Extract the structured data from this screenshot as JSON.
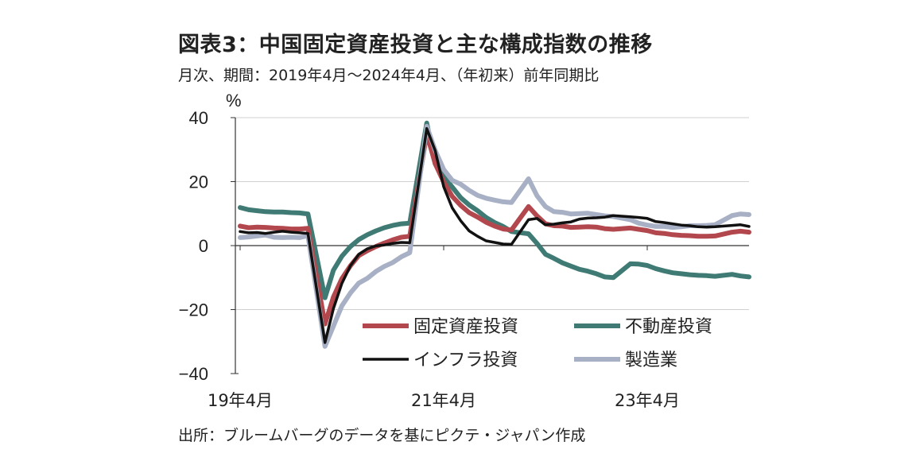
{
  "title": "図表3：中国固定資産投資と主な構成指数の推移",
  "subtitle": "月次、期間：2019年4月～2024年4月、（年初来）前年同期比",
  "source": "出所：ブルームバーグのデータを基にピクテ・ジャパン作成",
  "chart_data": {
    "type": "line",
    "ylabel": "%",
    "ylim": [
      -40,
      40
    ],
    "yticks": [
      "40",
      "20",
      "0",
      "−20",
      "−40"
    ],
    "x_range": [
      "2019-04",
      "2024-04"
    ],
    "xtick_labels": [
      {
        "date": "2019-04",
        "label": "19年4月"
      },
      {
        "date": "2021-04",
        "label": "21年4月"
      },
      {
        "date": "2023-04",
        "label": "23年4月"
      }
    ],
    "grid": true,
    "legend_position": "bottom-right",
    "series": [
      {
        "name": "固定資産投資",
        "color": "#b2484d",
        "width": 6,
        "x": [
          "2019-04",
          "2019-05",
          "2019-06",
          "2019-07",
          "2019-08",
          "2019-09",
          "2019-10",
          "2019-11",
          "2019-12",
          "2020-02",
          "2020-03",
          "2020-04",
          "2020-05",
          "2020-06",
          "2020-07",
          "2020-08",
          "2020-09",
          "2020-10",
          "2020-11",
          "2020-12",
          "2021-02",
          "2021-03",
          "2021-04",
          "2021-05",
          "2021-06",
          "2021-07",
          "2021-08",
          "2021-09",
          "2021-10",
          "2021-11",
          "2021-12",
          "2022-02",
          "2022-03",
          "2022-04",
          "2022-05",
          "2022-06",
          "2022-07",
          "2022-08",
          "2022-09",
          "2022-10",
          "2022-11",
          "2022-12",
          "2023-02",
          "2023-03",
          "2023-04",
          "2023-05",
          "2023-06",
          "2023-07",
          "2023-08",
          "2023-09",
          "2023-10",
          "2023-11",
          "2023-12",
          "2024-02",
          "2024-03",
          "2024-04"
        ],
        "values": [
          6.1,
          5.6,
          5.8,
          5.7,
          5.5,
          5.4,
          5.2,
          5.2,
          5.4,
          -24.5,
          -16.1,
          -10.3,
          -6.3,
          -3.1,
          -1.6,
          -0.3,
          0.8,
          1.8,
          2.6,
          2.9,
          35.0,
          25.6,
          19.9,
          15.4,
          12.6,
          10.3,
          8.9,
          7.3,
          6.1,
          5.2,
          4.9,
          12.2,
          9.3,
          6.8,
          6.2,
          6.1,
          5.7,
          5.8,
          5.9,
          5.8,
          5.3,
          5.1,
          5.5,
          5.1,
          4.7,
          4.0,
          3.8,
          3.4,
          3.2,
          3.1,
          2.9,
          2.9,
          3.0,
          4.2,
          4.5,
          4.2
        ]
      },
      {
        "name": "不動産投資",
        "color": "#3f7b74",
        "width": 6,
        "x": [
          "2019-04",
          "2019-05",
          "2019-06",
          "2019-07",
          "2019-08",
          "2019-09",
          "2019-10",
          "2019-11",
          "2019-12",
          "2020-02",
          "2020-03",
          "2020-04",
          "2020-05",
          "2020-06",
          "2020-07",
          "2020-08",
          "2020-09",
          "2020-10",
          "2020-11",
          "2020-12",
          "2021-02",
          "2021-03",
          "2021-04",
          "2021-05",
          "2021-06",
          "2021-07",
          "2021-08",
          "2021-09",
          "2021-10",
          "2021-11",
          "2021-12",
          "2022-02",
          "2022-03",
          "2022-04",
          "2022-05",
          "2022-06",
          "2022-07",
          "2022-08",
          "2022-09",
          "2022-10",
          "2022-11",
          "2022-12",
          "2023-02",
          "2023-03",
          "2023-04",
          "2023-05",
          "2023-06",
          "2023-07",
          "2023-08",
          "2023-09",
          "2023-10",
          "2023-11",
          "2023-12",
          "2024-02",
          "2024-03",
          "2024-04"
        ],
        "values": [
          11.9,
          11.2,
          10.9,
          10.6,
          10.5,
          10.5,
          10.3,
          10.2,
          9.9,
          -16.3,
          -7.7,
          -3.3,
          -0.3,
          1.9,
          3.4,
          4.6,
          5.6,
          6.3,
          6.8,
          7.0,
          38.3,
          25.6,
          21.6,
          18.3,
          15.0,
          12.7,
          10.9,
          8.8,
          7.2,
          6.0,
          4.4,
          3.7,
          0.7,
          -2.7,
          -4.0,
          -5.4,
          -6.4,
          -7.4,
          -8.0,
          -8.8,
          -9.8,
          -10.0,
          -5.7,
          -5.8,
          -6.2,
          -7.2,
          -7.9,
          -8.5,
          -8.8,
          -9.1,
          -9.3,
          -9.4,
          -9.6,
          -9.0,
          -9.5,
          -9.8
        ]
      },
      {
        "name": "インフラ投資",
        "color": "#111111",
        "width": 3.5,
        "x": [
          "2019-04",
          "2019-05",
          "2019-06",
          "2019-07",
          "2019-08",
          "2019-09",
          "2019-10",
          "2019-11",
          "2019-12",
          "2020-02",
          "2020-03",
          "2020-04",
          "2020-05",
          "2020-06",
          "2020-07",
          "2020-08",
          "2020-09",
          "2020-10",
          "2020-11",
          "2020-12",
          "2021-02",
          "2021-03",
          "2021-04",
          "2021-05",
          "2021-06",
          "2021-07",
          "2021-08",
          "2021-09",
          "2021-10",
          "2021-11",
          "2021-12",
          "2022-02",
          "2022-03",
          "2022-04",
          "2022-05",
          "2022-06",
          "2022-07",
          "2022-08",
          "2022-09",
          "2022-10",
          "2022-11",
          "2022-12",
          "2023-02",
          "2023-03",
          "2023-04",
          "2023-05",
          "2023-06",
          "2023-07",
          "2023-08",
          "2023-09",
          "2023-10",
          "2023-11",
          "2023-12",
          "2024-02",
          "2024-03",
          "2024-04"
        ],
        "values": [
          4.4,
          4.0,
          4.1,
          3.8,
          4.2,
          4.5,
          4.2,
          4.0,
          3.8,
          -30.3,
          -19.7,
          -11.8,
          -6.3,
          -2.7,
          -1.0,
          -0.1,
          0.2,
          0.7,
          1.0,
          0.9,
          36.6,
          29.7,
          18.4,
          11.8,
          7.8,
          4.6,
          2.9,
          1.5,
          1.0,
          0.5,
          0.4,
          8.1,
          8.5,
          6.5,
          6.7,
          7.1,
          7.4,
          8.3,
          8.6,
          8.7,
          8.9,
          9.4,
          9.0,
          8.8,
          8.5,
          7.5,
          7.2,
          6.8,
          6.4,
          6.2,
          5.9,
          5.8,
          5.9,
          6.3,
          6.5,
          6.0
        ]
      },
      {
        "name": "製造業",
        "color": "#a7b0c4",
        "width": 6,
        "x": [
          "2019-04",
          "2019-05",
          "2019-06",
          "2019-07",
          "2019-08",
          "2019-09",
          "2019-10",
          "2019-11",
          "2019-12",
          "2020-02",
          "2020-03",
          "2020-04",
          "2020-05",
          "2020-06",
          "2020-07",
          "2020-08",
          "2020-09",
          "2020-10",
          "2020-11",
          "2020-12",
          "2021-02",
          "2021-03",
          "2021-04",
          "2021-05",
          "2021-06",
          "2021-07",
          "2021-08",
          "2021-09",
          "2021-10",
          "2021-11",
          "2021-12",
          "2022-02",
          "2022-03",
          "2022-04",
          "2022-05",
          "2022-06",
          "2022-07",
          "2022-08",
          "2022-09",
          "2022-10",
          "2022-11",
          "2022-12",
          "2023-02",
          "2023-03",
          "2023-04",
          "2023-05",
          "2023-06",
          "2023-07",
          "2023-08",
          "2023-09",
          "2023-10",
          "2023-11",
          "2023-12",
          "2024-02",
          "2024-03",
          "2024-04"
        ],
        "values": [
          2.5,
          2.7,
          3.0,
          3.3,
          2.6,
          2.5,
          2.6,
          2.5,
          3.1,
          -31.5,
          -25.2,
          -18.8,
          -14.8,
          -11.7,
          -10.2,
          -8.1,
          -6.5,
          -5.3,
          -3.5,
          -2.2,
          37.3,
          29.8,
          23.8,
          20.4,
          19.2,
          17.3,
          15.7,
          14.8,
          14.2,
          13.7,
          13.5,
          20.9,
          15.6,
          12.2,
          10.6,
          10.4,
          9.9,
          10.0,
          10.1,
          9.7,
          9.3,
          9.1,
          8.1,
          7.0,
          6.4,
          6.0,
          6.0,
          5.7,
          5.9,
          6.2,
          6.2,
          6.3,
          6.5,
          9.4,
          9.9,
          9.7
        ]
      }
    ]
  }
}
